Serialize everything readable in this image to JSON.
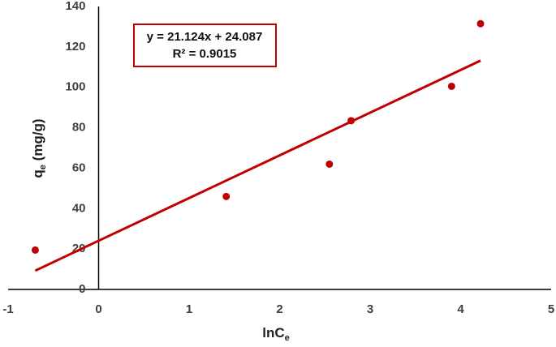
{
  "chart_data": {
    "type": "scatter",
    "x_label": {
      "main": "lnC",
      "sub": "e"
    },
    "y_label": {
      "main": "q",
      "sub": "e",
      "rest": " (mg/g)"
    },
    "series": [
      {
        "name": "qe",
        "color": "#c00000",
        "x": [
          -0.7,
          1.41,
          2.55,
          2.79,
          3.9,
          4.22
        ],
        "values": [
          19.5,
          46,
          62,
          83.5,
          100.5,
          131.5
        ]
      }
    ],
    "trendline": {
      "slope": 21.124,
      "intercept": 24.087,
      "color": "#c00000",
      "equation_label": "y = 21.124x + 24.087",
      "r2_label": "R² = 0.9015"
    },
    "xlim": [
      -1,
      5
    ],
    "xticks": [
      -1,
      0,
      1,
      2,
      3,
      4,
      5
    ],
    "ylim": [
      0,
      140
    ],
    "yticks": [
      0,
      20,
      40,
      60,
      80,
      100,
      120,
      140
    ],
    "grid": false
  }
}
